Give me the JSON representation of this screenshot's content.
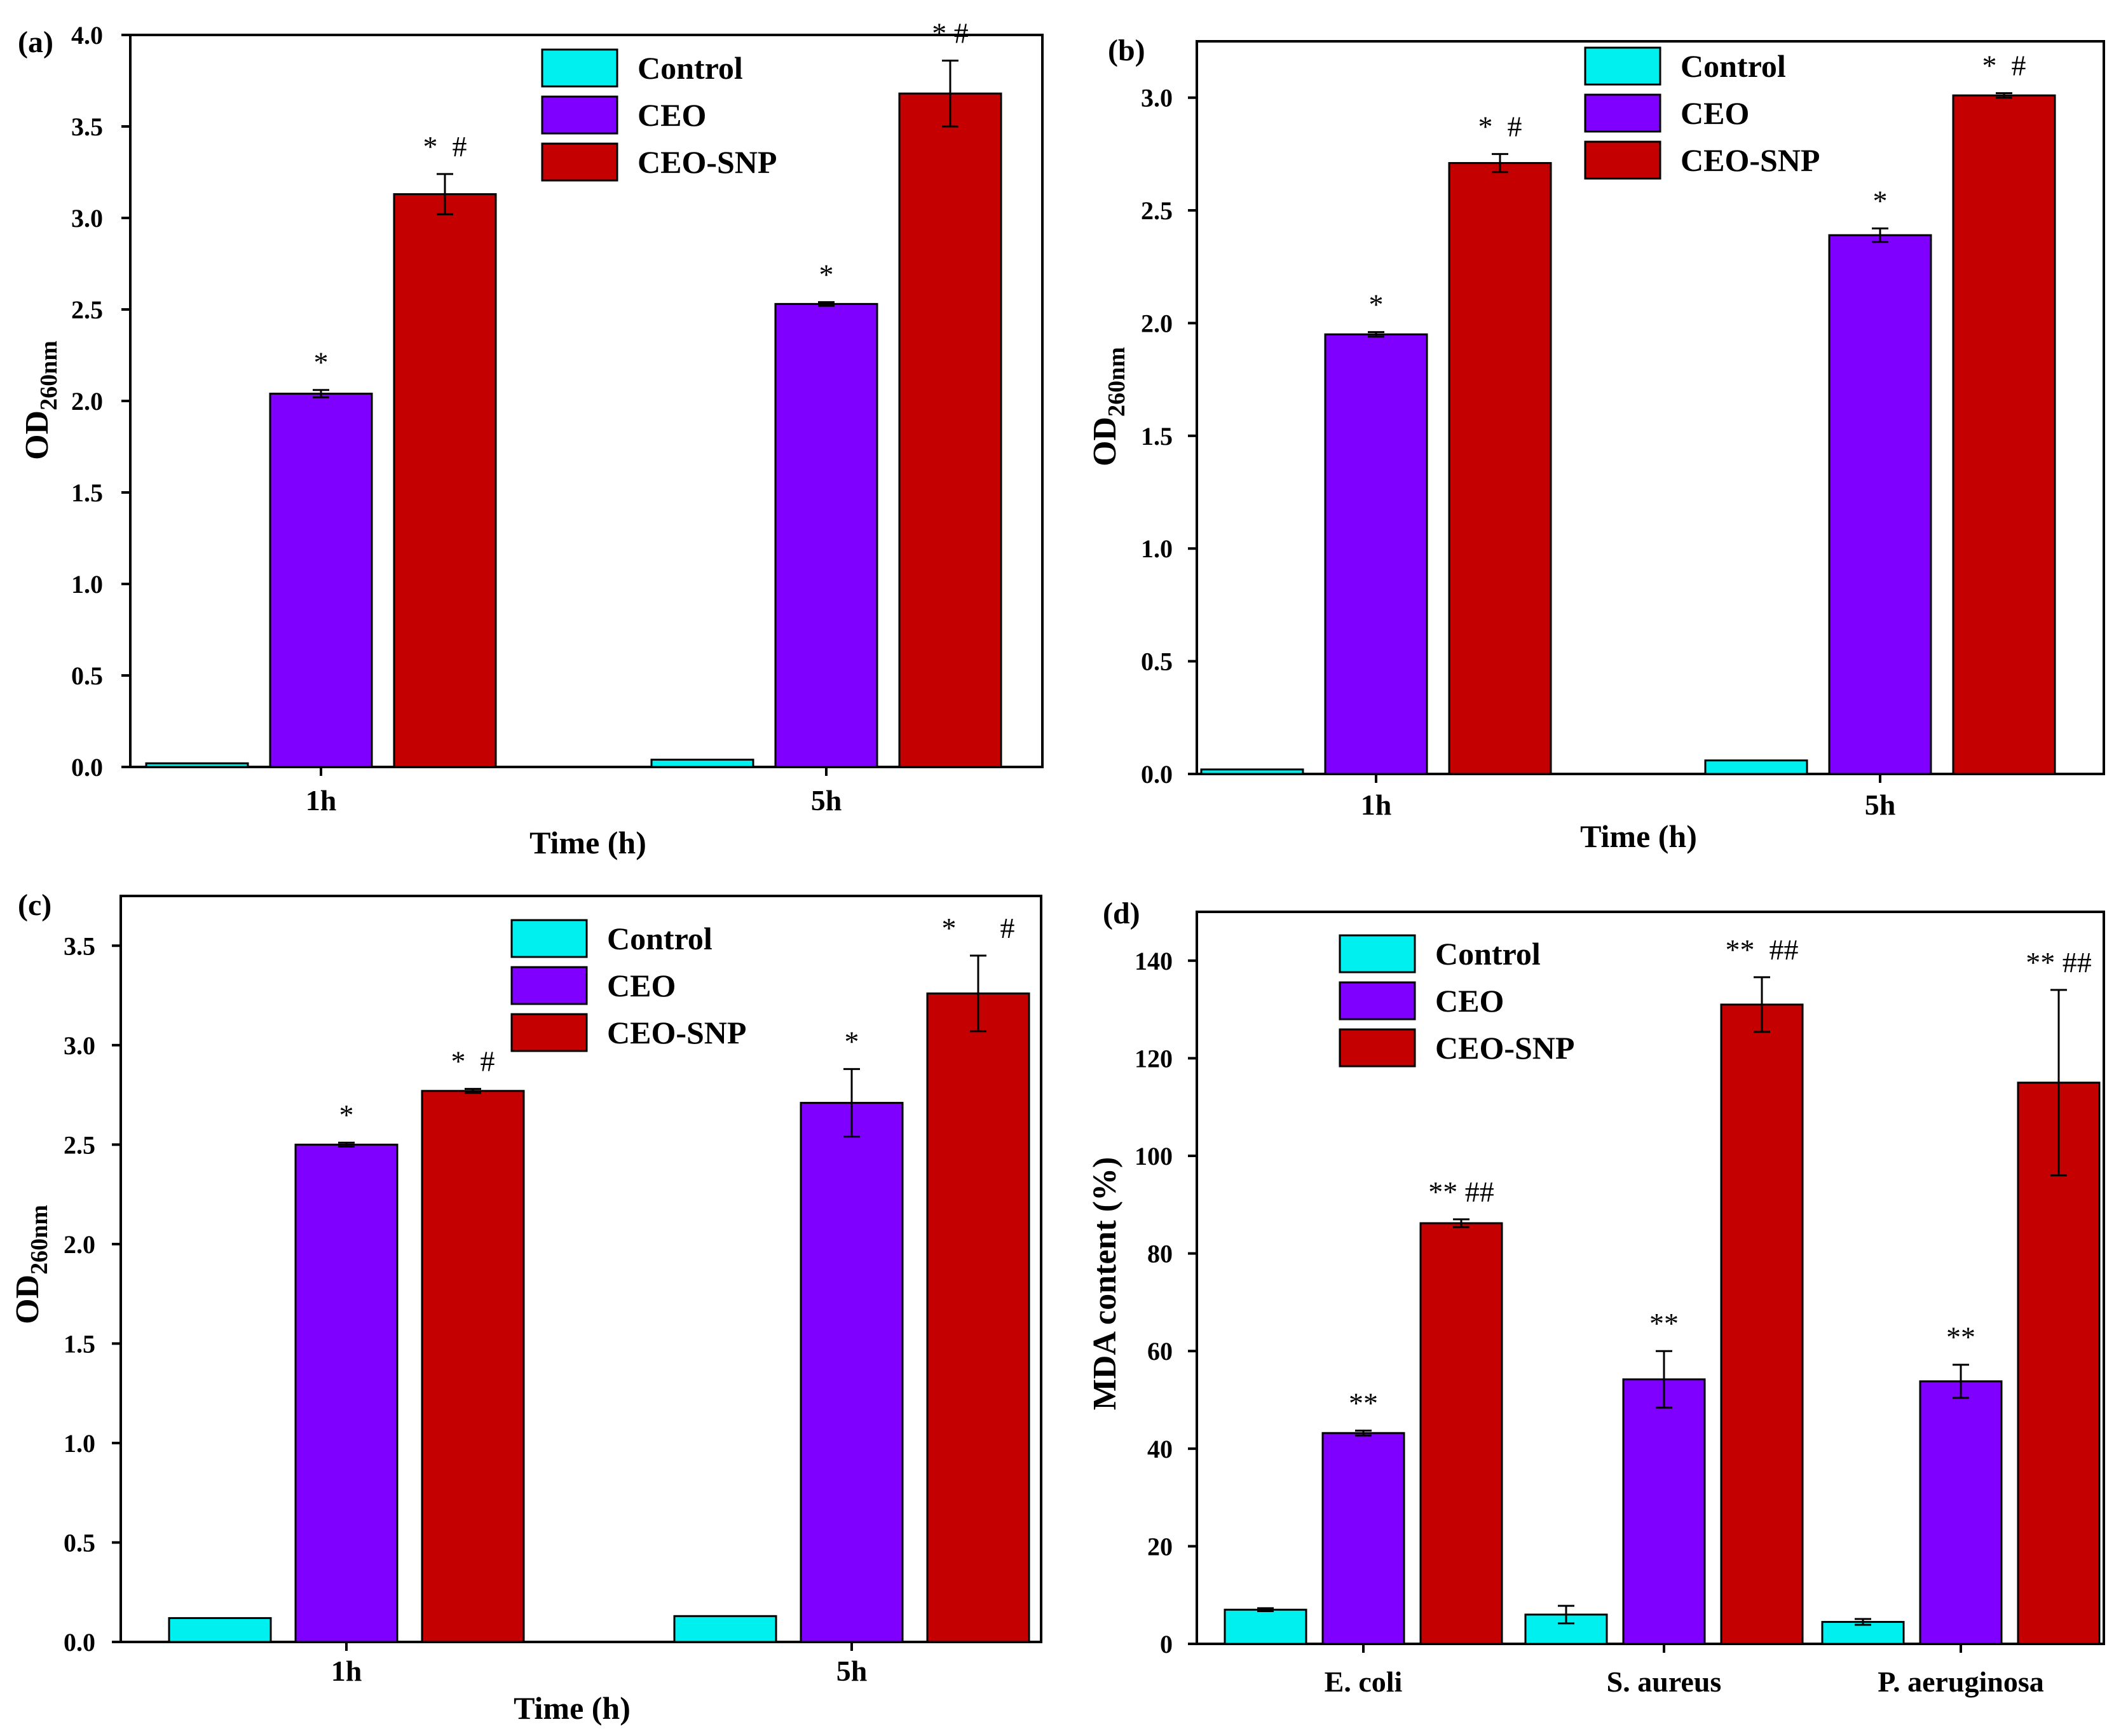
{
  "colors": {
    "control": "#00f0f0",
    "ceo": "#7f00ff",
    "ceo_snp": "#c40000"
  },
  "legend": [
    "Control",
    "CEO",
    "CEO-SNP"
  ],
  "chart_data": [
    {
      "panel": "(a)",
      "type": "bar",
      "categories": [
        "1h",
        "5h"
      ],
      "xlabel": "Time (h)",
      "ylabel_main": "OD",
      "ylabel_sub": "260nm",
      "ylim": [
        0,
        4.0
      ],
      "yticks": [
        "0.0",
        "0.5",
        "1.0",
        "1.5",
        "2.0",
        "2.5",
        "3.0",
        "3.5",
        "4.0"
      ],
      "series": [
        {
          "name": "Control",
          "values": [
            0.02,
            0.04
          ],
          "errors": [
            0.0,
            0.0
          ],
          "marks": [
            "",
            ""
          ]
        },
        {
          "name": "CEO",
          "values": [
            2.04,
            2.53
          ],
          "errors": [
            0.02,
            0.01
          ],
          "marks": [
            "*",
            "*"
          ]
        },
        {
          "name": "CEO-SNP",
          "values": [
            3.13,
            3.68
          ],
          "errors": [
            0.11,
            0.18
          ],
          "marks": [
            "*  #",
            "* #"
          ]
        }
      ]
    },
    {
      "panel": "(b)",
      "type": "bar",
      "categories": [
        "1h",
        "5h"
      ],
      "xlabel": "Time (h)",
      "ylabel_main": "OD",
      "ylabel_sub": "260nm",
      "ylim": [
        0,
        3.25
      ],
      "yticks": [
        "0.0",
        "0.5",
        "1.0",
        "1.5",
        "2.0",
        "2.5",
        "3.0"
      ],
      "series": [
        {
          "name": "Control",
          "values": [
            0.02,
            0.06
          ],
          "errors": [
            0.0,
            0.0
          ],
          "marks": [
            "",
            ""
          ]
        },
        {
          "name": "CEO",
          "values": [
            1.95,
            2.39
          ],
          "errors": [
            0.01,
            0.03
          ],
          "marks": [
            "*",
            "*"
          ]
        },
        {
          "name": "CEO-SNP",
          "values": [
            2.71,
            3.01
          ],
          "errors": [
            0.04,
            0.01
          ],
          "marks": [
            "*  #",
            "*  #"
          ]
        }
      ]
    },
    {
      "panel": "(c)",
      "type": "bar",
      "categories": [
        "1h",
        "5h"
      ],
      "xlabel": "Time (h)",
      "ylabel_main": "OD",
      "ylabel_sub": "260nm",
      "ylim": [
        0,
        3.75
      ],
      "yticks": [
        "0.0",
        "0.5",
        "1.0",
        "1.5",
        "2.0",
        "2.5",
        "3.0",
        "3.5"
      ],
      "series": [
        {
          "name": "Control",
          "values": [
            0.12,
            0.13
          ],
          "errors": [
            0.0,
            0.0
          ],
          "marks": [
            "",
            ""
          ]
        },
        {
          "name": "CEO",
          "values": [
            2.5,
            2.71
          ],
          "errors": [
            0.01,
            0.17
          ],
          "marks": [
            "*",
            "*"
          ]
        },
        {
          "name": "CEO-SNP",
          "values": [
            2.77,
            3.26
          ],
          "errors": [
            0.01,
            0.19
          ],
          "marks": [
            "*  #",
            "*      #"
          ]
        }
      ]
    },
    {
      "panel": "(d)",
      "type": "bar",
      "categories": [
        "E. coli",
        "S. aureus",
        "P. aeruginosa"
      ],
      "xlabel": "",
      "ylabel_main": "MDA content (%)",
      "ylabel_sub": "",
      "ylim": [
        0,
        150
      ],
      "yticks": [
        "0",
        "20",
        "40",
        "60",
        "80",
        "100",
        "120",
        "140"
      ],
      "series": [
        {
          "name": "Control",
          "values": [
            7,
            6,
            4.5
          ],
          "errors": [
            0.3,
            1.8,
            0.6
          ],
          "marks": [
            "",
            "",
            ""
          ]
        },
        {
          "name": "CEO",
          "values": [
            43.2,
            54.2,
            53.8
          ],
          "errors": [
            0.5,
            5.8,
            3.4
          ],
          "marks": [
            "**",
            "**",
            "**"
          ]
        },
        {
          "name": "CEO-SNP",
          "values": [
            86.2,
            131,
            115
          ],
          "errors": [
            0.8,
            5.6,
            19
          ],
          "marks": [
            "** ##",
            "**  ##",
            "** ##"
          ]
        }
      ]
    }
  ]
}
